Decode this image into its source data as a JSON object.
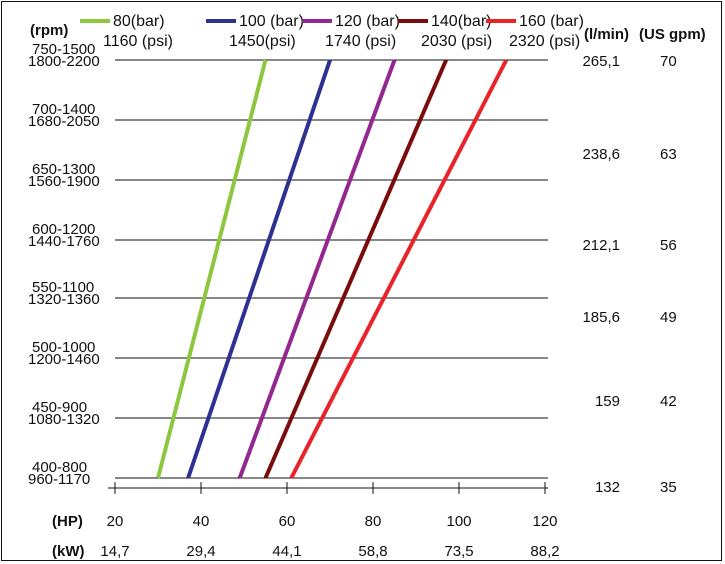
{
  "chart_data": {
    "type": "line",
    "x_labels": {
      "hp_label": "(HP)",
      "hp_ticks": [
        "20",
        "40",
        "60",
        "80",
        "100",
        "120"
      ],
      "kw_label": "(kW)",
      "kw_ticks": [
        "14,7",
        "29,4",
        "44,1",
        "58,8",
        "73,5",
        "88,2"
      ],
      "xlim": [
        20,
        120
      ]
    },
    "y_left": {
      "label": "(rpm)",
      "rows": [
        {
          "a": "750-1500",
          "b": "1800-2200"
        },
        {
          "a": "700-1400",
          "b": "1680-2050"
        },
        {
          "a": "650-1300",
          "b": "1560-1900"
        },
        {
          "a": "600-1200",
          "b": "1440-1760"
        },
        {
          "a": "550-1100",
          "b": "1320-1360"
        },
        {
          "a": "500-1000",
          "b": "1200-1460"
        },
        {
          "a": "450-900",
          "b": "1080-1320"
        },
        {
          "a": "400-800",
          "b": "960-1170"
        }
      ]
    },
    "y_right": {
      "lmin_label": "(l/min)",
      "usgpm_label": "(US gpm)",
      "rows": [
        {
          "lmin": "265,1",
          "usgpm": "70"
        },
        {
          "lmin": "238,6",
          "usgpm": "63"
        },
        {
          "lmin": "212,1",
          "usgpm": "56"
        },
        {
          "lmin": "185,6",
          "usgpm": "49"
        },
        {
          "lmin": "159",
          "usgpm": "42"
        },
        {
          "lmin": "132",
          "usgpm": "35"
        }
      ],
      "ylim": [
        132,
        265.1
      ]
    },
    "series": [
      {
        "name": "80(bar)",
        "name2": "1160 (psi)",
        "color": "#8dc63f",
        "hp": [
          30,
          55
        ],
        "flow": [
          132,
          265.1
        ]
      },
      {
        "name": "100 (bar)",
        "name2": "1450(psi)",
        "color": "#2e3192",
        "hp": [
          37,
          70
        ],
        "flow": [
          132,
          265.1
        ]
      },
      {
        "name": "120 (bar)",
        "name2": "1740 (psi)",
        "color": "#92278f",
        "hp": [
          49,
          85
        ],
        "flow": [
          132,
          265.1
        ]
      },
      {
        "name": "140(bar)",
        "name2": "2030 (psi)",
        "color": "#7b0c0c",
        "hp": [
          55,
          97
        ],
        "flow": [
          132,
          265.1
        ]
      },
      {
        "name": "160 (bar)",
        "name2": "2320 (psi)",
        "color": "#e8232a",
        "hp": [
          61,
          111
        ],
        "flow": [
          132,
          265.1
        ]
      }
    ],
    "grid": true,
    "legend_position": "top"
  }
}
